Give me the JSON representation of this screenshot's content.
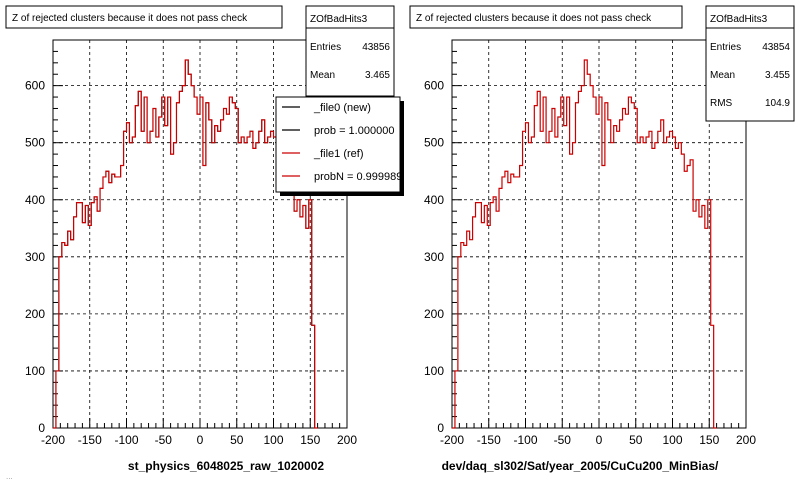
{
  "footer_text": "...",
  "chart_data": [
    {
      "type": "histogram",
      "title": "Z of rejected clusters  because it does not pass check",
      "xlabel": "st_physics_6048025_raw_1020002",
      "ylabel": "",
      "xlim": [
        -200,
        200
      ],
      "ylim": [
        0,
        680
      ],
      "x_ticks": [
        -200,
        -150,
        -100,
        -50,
        0,
        50,
        100,
        150,
        200
      ],
      "y_ticks": [
        0,
        100,
        200,
        300,
        400,
        500,
        600
      ],
      "grid": true,
      "stats": {
        "name": "ZOfBadHits3",
        "rows": [
          {
            "label": "Entries",
            "value": "43856"
          },
          {
            "label": "Mean",
            "value": "3.465"
          }
        ]
      },
      "legend": {
        "placement": "top-right",
        "entries": [
          {
            "label": "_file0 (new)",
            "color": "#000000"
          },
          {
            "label": "prob = 1.000000",
            "color": "#000000"
          },
          {
            "label": "_file1 (ref)",
            "color": "#cc0000"
          },
          {
            "label": "probN = 0.999989",
            "color": "#cc0000"
          }
        ]
      },
      "bin_width": 4,
      "bins_start": -200,
      "series": [
        {
          "name": "_file0 (new)",
          "color": "#000000",
          "ref": "main"
        },
        {
          "name": "_file1 (ref)",
          "color": "#cc0000",
          "ref": "main"
        }
      ],
      "values": [
        0,
        100,
        300,
        325,
        320,
        345,
        330,
        370,
        395,
        395,
        360,
        390,
        355,
        395,
        405,
        380,
        420,
        440,
        450,
        430,
        445,
        440,
        440,
        460,
        520,
        535,
        500,
        510,
        565,
        590,
        520,
        580,
        500,
        520,
        560,
        510,
        545,
        580,
        530,
        580,
        480,
        500,
        570,
        590,
        600,
        645,
        620,
        600,
        580,
        550,
        580,
        460,
        570,
        540,
        500,
        530,
        520,
        540,
        560,
        550,
        580,
        570,
        560,
        500,
        510,
        500,
        510,
        520,
        490,
        500,
        520,
        540,
        500,
        510,
        520,
        510,
        490,
        500,
        480,
        450,
        460,
        470,
        380,
        400,
        370,
        390,
        350,
        400,
        180,
        0
      ]
    },
    {
      "type": "histogram",
      "title": "Z of rejected clusters  because it does not pass check",
      "xlabel": "dev/daq_sl302/Sat/year_2005/CuCu200_MinBias/",
      "ylabel": "",
      "xlim": [
        -200,
        200
      ],
      "ylim": [
        0,
        680
      ],
      "x_ticks": [
        -200,
        -150,
        -100,
        -50,
        0,
        50,
        100,
        150,
        200
      ],
      "y_ticks": [
        0,
        100,
        200,
        300,
        400,
        500,
        600
      ],
      "grid": true,
      "stats": {
        "name": "ZOfBadHits3",
        "rows": [
          {
            "label": "Entries",
            "value": "43854"
          },
          {
            "label": "Mean",
            "value": "3.455"
          },
          {
            "label": "RMS",
            "value": "104.9"
          }
        ]
      },
      "bin_width": 4,
      "bins_start": -200,
      "series": [
        {
          "name": "",
          "color": "#cc0000"
        }
      ],
      "values": [
        0,
        100,
        300,
        325,
        320,
        345,
        330,
        370,
        395,
        395,
        360,
        390,
        355,
        395,
        405,
        380,
        420,
        440,
        450,
        430,
        445,
        440,
        440,
        460,
        520,
        535,
        500,
        510,
        565,
        590,
        520,
        580,
        500,
        520,
        560,
        510,
        545,
        580,
        530,
        580,
        480,
        500,
        570,
        590,
        600,
        645,
        620,
        600,
        580,
        550,
        580,
        460,
        570,
        540,
        500,
        530,
        520,
        540,
        560,
        550,
        580,
        570,
        560,
        500,
        510,
        500,
        510,
        520,
        490,
        500,
        520,
        540,
        500,
        510,
        520,
        510,
        490,
        500,
        480,
        450,
        460,
        470,
        380,
        400,
        370,
        390,
        350,
        400,
        180,
        0
      ]
    }
  ]
}
